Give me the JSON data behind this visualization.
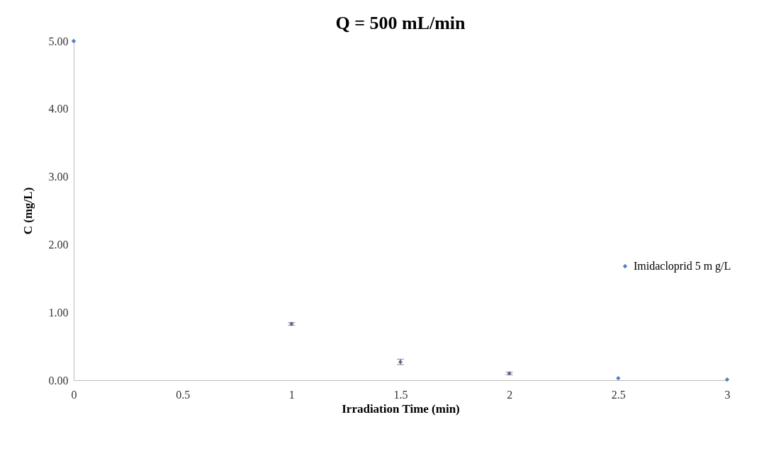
{
  "chart_data": {
    "type": "scatter",
    "title": "Q = 500 mL/min",
    "xlabel": "Irradiation  Time (min)",
    "ylabel": "C (mg/L)",
    "x": [
      0,
      1,
      1.5,
      2,
      2.5,
      3
    ],
    "series": [
      {
        "name": "Imidacloprid 5 m g/L",
        "color": "#4f81bd",
        "values": [
          5.0,
          0.83,
          0.27,
          0.1,
          0.03,
          0.01
        ],
        "errors": [
          null,
          0.02,
          0.04,
          0.02,
          null,
          null
        ]
      }
    ],
    "xlim": [
      0,
      3
    ],
    "xticks": [
      0,
      0.5,
      1,
      1.5,
      2,
      2.5,
      3
    ],
    "ylim": [
      0,
      5
    ],
    "yticks": [
      {
        "value": 0,
        "label": "0.00"
      },
      {
        "value": 1,
        "label": "1.00"
      },
      {
        "value": 2,
        "label": "2.00"
      },
      {
        "value": 3,
        "label": "3.00"
      },
      {
        "value": 4,
        "label": "4.00"
      },
      {
        "value": 5,
        "label": "5.00"
      }
    ],
    "grid": false,
    "legend": "right",
    "marker": "diamond"
  }
}
